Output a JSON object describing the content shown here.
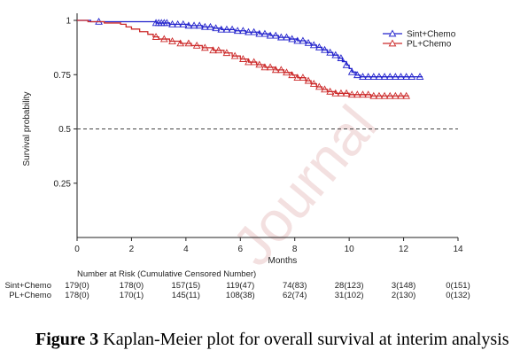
{
  "watermark": "Journal",
  "caption": {
    "label": "Figure 3",
    "text": "Kaplan-Meier plot for overall survival at interim analysis"
  },
  "chart_data": {
    "type": "line",
    "subtype": "kaplan-meier",
    "title": "",
    "xlabel": "Months",
    "ylabel": "Survival probability",
    "xlim": [
      0,
      14
    ],
    "ylim": [
      0,
      1
    ],
    "x_ticks": [
      0,
      2,
      4,
      6,
      8,
      10,
      12,
      14
    ],
    "y_ticks": [
      0.25,
      0.5,
      0.75,
      1
    ],
    "y_tick_labels": [
      "0.25",
      "0.5",
      "0.75",
      "1"
    ],
    "reference_line": {
      "y": 0.5,
      "style": "dashed"
    },
    "grid": false,
    "legend_position": "top-right",
    "series": [
      {
        "name": "Sint+Chemo",
        "color": "#2222cc",
        "marker": "open-triangle",
        "steps": [
          [
            0,
            1.0
          ],
          [
            0.5,
            0.994
          ],
          [
            2.9,
            0.988
          ],
          [
            3.4,
            0.982
          ],
          [
            4.1,
            0.976
          ],
          [
            4.6,
            0.97
          ],
          [
            5.0,
            0.964
          ],
          [
            5.3,
            0.958
          ],
          [
            5.8,
            0.952
          ],
          [
            6.2,
            0.946
          ],
          [
            6.7,
            0.938
          ],
          [
            7.1,
            0.93
          ],
          [
            7.4,
            0.922
          ],
          [
            7.8,
            0.914
          ],
          [
            8.1,
            0.906
          ],
          [
            8.4,
            0.896
          ],
          [
            8.6,
            0.886
          ],
          [
            8.8,
            0.876
          ],
          [
            9.0,
            0.864
          ],
          [
            9.2,
            0.852
          ],
          [
            9.4,
            0.84
          ],
          [
            9.6,
            0.826
          ],
          [
            9.75,
            0.81
          ],
          [
            9.9,
            0.794
          ],
          [
            10.0,
            0.778
          ],
          [
            10.1,
            0.762
          ],
          [
            10.25,
            0.748
          ],
          [
            10.4,
            0.74
          ],
          [
            12.7,
            0.74
          ]
        ],
        "censor_times": [
          0.8,
          2.9,
          3.0,
          3.1,
          3.2,
          3.3,
          3.5,
          3.7,
          3.9,
          4.1,
          4.3,
          4.5,
          4.7,
          4.9,
          5.1,
          5.3,
          5.5,
          5.7,
          5.9,
          6.1,
          6.3,
          6.5,
          6.7,
          6.9,
          7.1,
          7.3,
          7.5,
          7.7,
          7.9,
          8.1,
          8.3,
          8.5,
          8.7,
          8.9,
          9.1,
          9.3,
          9.5,
          9.7,
          9.9,
          10.1,
          10.3,
          10.5,
          10.7,
          10.9,
          11.1,
          11.3,
          11.5,
          11.7,
          11.9,
          12.1,
          12.3,
          12.6
        ]
      },
      {
        "name": "PL+Chemo",
        "color": "#cc2a2a",
        "marker": "open-triangle",
        "steps": [
          [
            0,
            1.0
          ],
          [
            0.4,
            0.994
          ],
          [
            1.0,
            0.988
          ],
          [
            1.6,
            0.982
          ],
          [
            1.8,
            0.97
          ],
          [
            2.0,
            0.96
          ],
          [
            2.3,
            0.948
          ],
          [
            2.6,
            0.936
          ],
          [
            2.8,
            0.924
          ],
          [
            3.0,
            0.914
          ],
          [
            3.4,
            0.904
          ],
          [
            3.8,
            0.894
          ],
          [
            4.2,
            0.884
          ],
          [
            4.6,
            0.874
          ],
          [
            5.0,
            0.862
          ],
          [
            5.4,
            0.85
          ],
          [
            5.7,
            0.836
          ],
          [
            6.0,
            0.822
          ],
          [
            6.3,
            0.808
          ],
          [
            6.6,
            0.796
          ],
          [
            6.9,
            0.784
          ],
          [
            7.3,
            0.772
          ],
          [
            7.6,
            0.76
          ],
          [
            7.9,
            0.748
          ],
          [
            8.1,
            0.736
          ],
          [
            8.4,
            0.722
          ],
          [
            8.6,
            0.708
          ],
          [
            8.8,
            0.694
          ],
          [
            9.0,
            0.682
          ],
          [
            9.2,
            0.672
          ],
          [
            9.5,
            0.664
          ],
          [
            10.0,
            0.658
          ],
          [
            10.8,
            0.652
          ],
          [
            12.2,
            0.652
          ]
        ],
        "censor_times": [
          2.9,
          3.2,
          3.5,
          3.8,
          4.1,
          4.4,
          4.7,
          5.0,
          5.2,
          5.5,
          5.8,
          6.1,
          6.3,
          6.5,
          6.7,
          6.9,
          7.1,
          7.3,
          7.5,
          7.7,
          7.9,
          8.1,
          8.3,
          8.5,
          8.7,
          8.9,
          9.1,
          9.3,
          9.5,
          9.7,
          9.9,
          10.1,
          10.3,
          10.5,
          10.7,
          10.9,
          11.1,
          11.3,
          11.5,
          11.7,
          11.9,
          12.1
        ]
      }
    ],
    "risk_table": {
      "title": "Number at Risk (Cumulative Censored Number)",
      "times": [
        0,
        2,
        4,
        6,
        8,
        10,
        12,
        14
      ],
      "rows": [
        {
          "name": "Sint+Chemo",
          "values": [
            "179(0)",
            "178(0)",
            "157(15)",
            "119(47)",
            "74(83)",
            "28(123)",
            "3(148)",
            "0(151)"
          ]
        },
        {
          "name": "PL+Chemo",
          "values": [
            "178(0)",
            "170(1)",
            "145(11)",
            "108(38)",
            "62(74)",
            "31(102)",
            "2(130)",
            "0(132)"
          ]
        }
      ]
    }
  }
}
